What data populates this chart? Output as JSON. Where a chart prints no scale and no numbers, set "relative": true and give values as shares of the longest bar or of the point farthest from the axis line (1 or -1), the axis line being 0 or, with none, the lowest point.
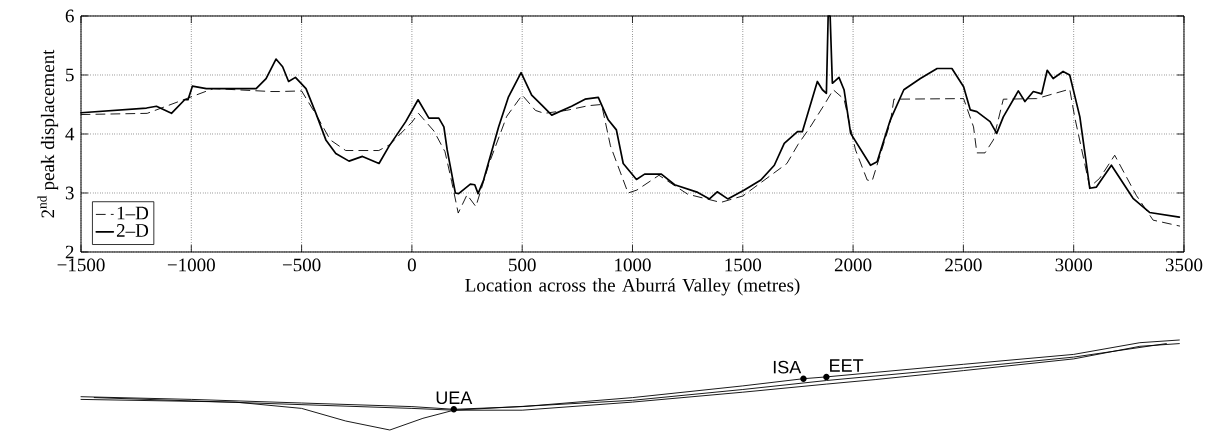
{
  "chart_data": [
    {
      "type": "line",
      "xlabel": "Location across the Aburrá Valley (metres)",
      "ylabel": "2$^{nd}$ peak displacement",
      "xlim": [
        -1500,
        3500
      ],
      "ylim": [
        2,
        6
      ],
      "xticks": [
        {
          "value": -1500,
          "label": "−1500"
        },
        {
          "value": -1000,
          "label": "−1000"
        },
        {
          "value": -500,
          "label": "−500"
        },
        0,
        500,
        1000,
        1500,
        2000,
        2500,
        3000,
        3500
      ],
      "yticks": [
        2,
        3,
        4,
        5,
        6
      ],
      "grid": true,
      "legend": "bottom left",
      "marker": "none",
      "series": [
        {
          "name": "1–D",
          "color": "#000000",
          "line_style": "dashed",
          "x": [
            -1500,
            -1200,
            -900,
            -640,
            -600,
            -500,
            -430,
            -370,
            -300,
            -150,
            -100,
            0,
            30,
            100,
            150,
            180,
            210,
            250,
            290,
            350,
            430,
            500,
            560,
            600,
            700,
            800,
            860,
            900,
            980,
            1020,
            1120,
            1250,
            1400,
            1500,
            1700,
            1750,
            1806,
            1870,
            1910,
            1959,
            2011,
            2064,
            2086,
            2169,
            2185,
            2501,
            2546,
            2561,
            2598,
            2636,
            2681,
            2832,
            2982,
            3005,
            3073,
            3118,
            3186,
            3284,
            3360,
            3480
          ],
          "values": [
            4.33,
            4.35,
            4.77,
            4.72,
            4.72,
            4.73,
            4.3,
            3.9,
            3.72,
            3.72,
            3.82,
            4.2,
            4.35,
            4.05,
            3.7,
            3.2,
            2.66,
            2.97,
            2.77,
            3.5,
            4.3,
            4.66,
            4.4,
            4.35,
            4.4,
            4.48,
            4.5,
            3.8,
            3.0,
            3.05,
            3.3,
            2.98,
            2.84,
            2.95,
            3.5,
            3.82,
            4.12,
            4.5,
            4.75,
            4.59,
            3.73,
            3.22,
            3.2,
            4.2,
            4.59,
            4.6,
            4.12,
            3.68,
            3.68,
            3.9,
            4.59,
            4.6,
            4.76,
            4.28,
            3.1,
            3.25,
            3.64,
            2.96,
            2.54,
            2.44
          ]
        },
        {
          "name": "2–D",
          "color": "#000000",
          "line_style": "solid",
          "x": [
            -1500,
            -1203,
            -1158,
            -1090,
            -1030,
            -1015,
            -995,
            -932,
            -706,
            -661,
            -616,
            -586,
            -559,
            -528,
            -480,
            -435,
            -390,
            -345,
            -285,
            -224,
            -149,
            -104,
            -28,
            28,
            77,
            122,
            145,
            160,
            197,
            212,
            265,
            285,
            300,
            325,
            393,
            438,
            495,
            543,
            589,
            634,
            724,
            785,
            845,
            890,
            927,
            958,
            1018,
            1055,
            1131,
            1191,
            1296,
            1349,
            1384,
            1432,
            1507,
            1582,
            1643,
            1688,
            1748,
            1770,
            1838,
            1861,
            1879,
            1887,
            1896,
            1906,
            1936,
            1959,
            1989,
            2079,
            2109,
            2169,
            2230,
            2305,
            2381,
            2448,
            2501,
            2531,
            2561,
            2621,
            2651,
            2681,
            2749,
            2779,
            2817,
            2855,
            2880,
            2907,
            2952,
            2982,
            3028,
            3073,
            3103,
            3171,
            3269,
            3344,
            3479
          ],
          "values": [
            4.36,
            4.44,
            4.47,
            4.35,
            4.58,
            4.58,
            4.81,
            4.77,
            4.77,
            4.94,
            5.27,
            5.14,
            4.89,
            4.96,
            4.77,
            4.35,
            3.9,
            3.67,
            3.54,
            3.62,
            3.5,
            3.79,
            4.21,
            4.58,
            4.27,
            4.27,
            4.12,
            3.73,
            3.0,
            2.99,
            3.15,
            3.14,
            2.99,
            3.22,
            4.12,
            4.63,
            5.04,
            4.66,
            4.49,
            4.32,
            4.47,
            4.59,
            4.62,
            4.24,
            4.07,
            3.5,
            3.23,
            3.32,
            3.32,
            3.14,
            3.01,
            2.9,
            3.02,
            2.9,
            3.05,
            3.22,
            3.47,
            3.84,
            4.04,
            4.04,
            4.89,
            4.75,
            4.69,
            6.0,
            6.0,
            4.86,
            4.96,
            4.75,
            4.01,
            3.47,
            3.53,
            4.24,
            4.75,
            4.94,
            5.11,
            5.11,
            4.8,
            4.41,
            4.38,
            4.21,
            4.01,
            4.29,
            4.73,
            4.55,
            4.72,
            4.68,
            5.08,
            4.94,
            5.06,
            5.0,
            4.29,
            3.08,
            3.1,
            3.47,
            2.91,
            2.67,
            2.59
          ]
        }
      ]
    },
    {
      "type": "line",
      "relative": true,
      "xlim": [
        -1500,
        3500
      ],
      "marker": "none",
      "series": [
        {
          "color": "#000000",
          "line_style": "solid",
          "x": [
            -1500,
            -1000,
            -500,
            0,
            190,
            500,
            1000,
            1500,
            1775,
            1879,
            2100,
            2500,
            3000,
            3300,
            3479
          ],
          "values": [
            0.37,
            0.34,
            0.3,
            0.26,
            0.23,
            0.26,
            0.36,
            0.49,
            0.57,
            0.59,
            0.64,
            0.73,
            0.84,
            0.97,
            1.0
          ]
        },
        {
          "color": "#000000",
          "line_style": "solid",
          "x": [
            -1440,
            0,
            190,
            1000,
            1500,
            1879,
            2500,
            3000,
            3420
          ],
          "values": [
            0.36,
            0.24,
            0.22,
            0.33,
            0.45,
            0.55,
            0.69,
            0.81,
            0.96
          ]
        },
        {
          "color": "#000000",
          "line_style": "solid",
          "x": [
            -1500,
            -800,
            -500,
            -300,
            -100,
            50,
            190,
            500,
            1000,
            1500,
            1879,
            2100,
            2500,
            3000,
            3300,
            3479
          ],
          "values": [
            0.34,
            0.31,
            0.24,
            0.1,
            0.0,
            0.13,
            0.22,
            0.22,
            0.31,
            0.42,
            0.51,
            0.56,
            0.66,
            0.79,
            0.93,
            0.96
          ]
        }
      ],
      "annotations": [
        {
          "text": "UEA",
          "x": 190,
          "y": 0.23
        },
        {
          "text": "ISA",
          "x": 1775,
          "y": 0.57
        },
        {
          "text": "EET",
          "x": 1879,
          "y": 0.59
        }
      ]
    }
  ]
}
